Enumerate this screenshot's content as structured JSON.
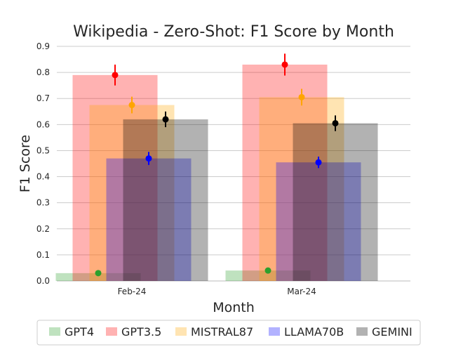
{
  "chart_data": {
    "type": "bar",
    "title": "Wikipedia - Zero-Shot: F1 Score by Month",
    "xlabel": "Month",
    "ylabel": "F1 Score",
    "categories": [
      "Feb-24",
      "Mar-24"
    ],
    "ylim": [
      0,
      0.9
    ],
    "yticks": [
      "0.0",
      "0.1",
      "0.2",
      "0.3",
      "0.4",
      "0.5",
      "0.6",
      "0.7",
      "0.8",
      "0.9"
    ],
    "grid": "horizontal",
    "legend_position": "bottom",
    "series": [
      {
        "name": "GPT4",
        "color": "#2ca02c",
        "values": [
          0.03,
          0.04
        ],
        "error": [
          0.006,
          0.006
        ]
      },
      {
        "name": "GPT3.5",
        "color": "#ff0000",
        "values": [
          0.79,
          0.83
        ],
        "error": [
          0.04,
          0.042
        ]
      },
      {
        "name": "MISTRAL87",
        "color": "#ffa500",
        "values": [
          0.675,
          0.705
        ],
        "error": [
          0.032,
          0.032
        ]
      },
      {
        "name": "LLAMA70B",
        "color": "#0000ff",
        "values": [
          0.47,
          0.455
        ],
        "error": [
          0.025,
          0.022
        ]
      },
      {
        "name": "GEMINI",
        "color": "#000000",
        "values": [
          0.62,
          0.605
        ],
        "error": [
          0.03,
          0.03
        ]
      }
    ]
  }
}
